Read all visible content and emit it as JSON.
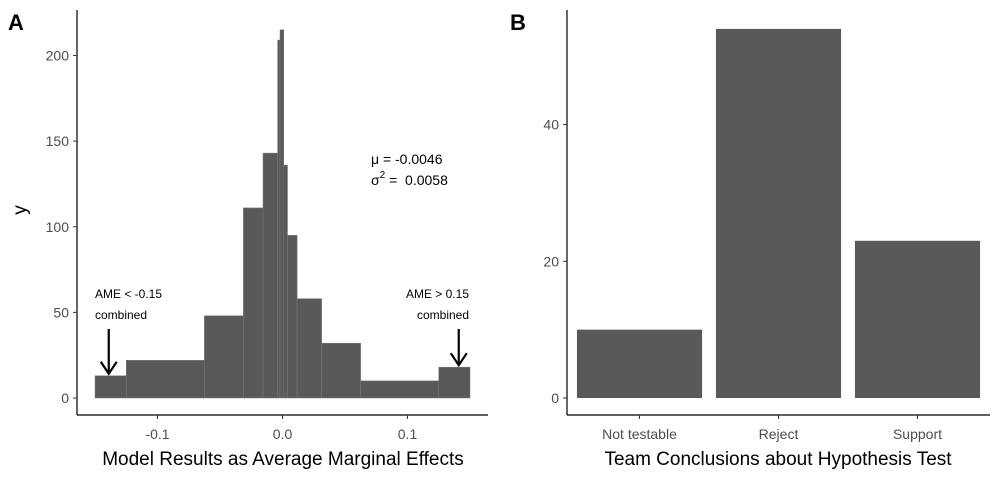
{
  "chart_data": [
    {
      "panel": "A",
      "type": "bar",
      "subtype": "histogram",
      "title": "",
      "xlabel": "Model Results as Average Marginal Effects",
      "ylabel": "y",
      "xlim": [
        -0.155,
        0.16
      ],
      "ylim": [
        0,
        220
      ],
      "x_ticks": [
        -0.1,
        0.0,
        0.1
      ],
      "x_tick_labels": [
        "-0.1",
        "0.0",
        "0.1"
      ],
      "y_ticks": [
        0,
        50,
        100,
        150,
        200
      ],
      "y_tick_labels": [
        "0",
        "50",
        "100",
        "150",
        "200"
      ],
      "grid": false,
      "bar_color": "#595959",
      "bins": [
        {
          "x0": -0.15,
          "x1": -0.125,
          "count": 13
        },
        {
          "x0": -0.125,
          "x1": -0.0625,
          "count": 22
        },
        {
          "x0": -0.0625,
          "x1": -0.0313,
          "count": 48
        },
        {
          "x0": -0.0313,
          "x1": -0.0156,
          "count": 111
        },
        {
          "x0": -0.0156,
          "x1": -0.0039,
          "count": 143
        },
        {
          "x0": -0.0039,
          "x1": -0.002,
          "count": 209
        },
        {
          "x0": -0.002,
          "x1": 0.001,
          "count": 215
        },
        {
          "x0": 0.001,
          "x1": 0.004,
          "count": 136
        },
        {
          "x0": 0.004,
          "x1": 0.0117,
          "count": 95
        },
        {
          "x0": 0.0117,
          "x1": 0.0313,
          "count": 58
        },
        {
          "x0": 0.0313,
          "x1": 0.0625,
          "count": 32
        },
        {
          "x0": 0.0625,
          "x1": 0.125,
          "count": 10
        },
        {
          "x0": 0.125,
          "x1": 0.15,
          "count": 18
        }
      ],
      "stats": {
        "mu_label": "μ = -0.0046",
        "sigma_symbol": "σ",
        "sigma_exp": "2",
        "sigma_value": " =  0.0058"
      },
      "annotations": [
        {
          "line1": "AME < -0.15",
          "line2": "combined",
          "x": -0.139,
          "y": 13
        },
        {
          "line1": "AME > 0.15",
          "line2": "combined",
          "x": 0.141,
          "y": 18
        }
      ]
    },
    {
      "panel": "B",
      "type": "bar",
      "title": "",
      "xlabel": "Team Conclusions about Hypothesis Test",
      "ylabel": "",
      "categories": [
        "Not testable",
        "Reject",
        "Support"
      ],
      "values": [
        10,
        54,
        23
      ],
      "ylim": [
        0,
        55.5
      ],
      "y_ticks": [
        0,
        20,
        40
      ],
      "y_tick_labels": [
        "0",
        "20",
        "40"
      ],
      "grid": false,
      "bar_color": "#595959"
    }
  ]
}
